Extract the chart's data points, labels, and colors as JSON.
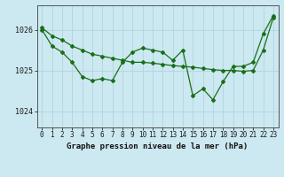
{
  "title": "Graphe pression niveau de la mer (hPa)",
  "background_color": "#cce8f0",
  "plot_bg_color": "#cce8f0",
  "line_color": "#1a6e1a",
  "grid_color": "#b0d4e0",
  "ylim": [
    1023.6,
    1026.6
  ],
  "yticks": [
    1024,
    1025,
    1026
  ],
  "xlim": [
    -0.5,
    23.5
  ],
  "x_ticks": [
    0,
    1,
    2,
    3,
    4,
    5,
    6,
    7,
    8,
    9,
    10,
    11,
    12,
    13,
    14,
    15,
    16,
    17,
    18,
    19,
    20,
    21,
    22,
    23
  ],
  "series_jagged": [
    1026.0,
    1025.6,
    1025.45,
    1025.2,
    1024.85,
    1024.75,
    1024.8,
    1024.75,
    1025.2,
    1025.45,
    1025.55,
    1025.5,
    1025.45,
    1025.25,
    1025.5,
    1024.38,
    1024.55,
    1024.28,
    1024.72,
    1025.1,
    1025.1,
    1025.2,
    1025.9,
    1026.35
  ],
  "series_trend": [
    1026.05,
    1025.85,
    1025.75,
    1025.6,
    1025.5,
    1025.4,
    1025.35,
    1025.3,
    1025.25,
    1025.2,
    1025.2,
    1025.18,
    1025.15,
    1025.12,
    1025.1,
    1025.08,
    1025.05,
    1025.02,
    1025.0,
    1025.0,
    1024.98,
    1025.0,
    1025.5,
    1026.3
  ]
}
